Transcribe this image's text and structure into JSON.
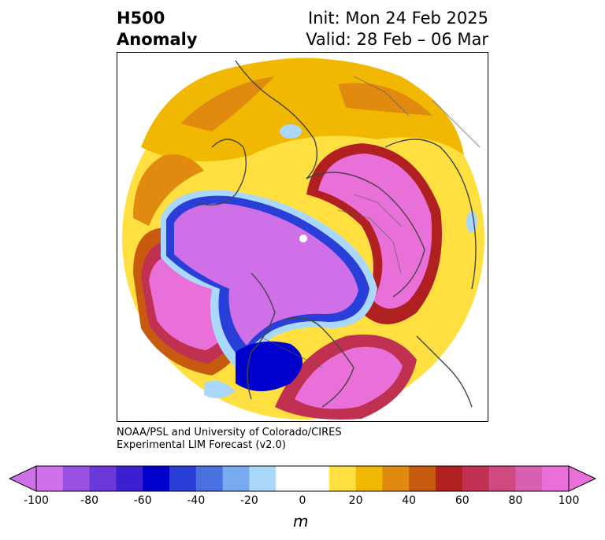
{
  "title": {
    "left_line1": "H500",
    "left_line2": "Anomaly",
    "right_line1": "Init: Mon 24 Feb 2025",
    "right_line2": "Valid: 28 Feb – 06 Mar"
  },
  "credits": {
    "line1": "NOAA/PSL and University of Colorado/CIRES",
    "line2": "Experimental LIM Forecast (v2.0)"
  },
  "colorbar": {
    "ticks": [
      "-100",
      "-80",
      "-60",
      "-40",
      "-20",
      "0",
      "20",
      "40",
      "60",
      "80",
      "100"
    ],
    "unit": "m",
    "colors": [
      "#d070e8",
      "#9a50e0",
      "#6a38d8",
      "#3a20d0",
      "#0000cc",
      "#2a3ed8",
      "#4a70e0",
      "#78aaf0",
      "#aad8fa",
      "#ffffff",
      "#ffffff",
      "#ffe040",
      "#f0b800",
      "#e08a10",
      "#c85a10",
      "#b02020",
      "#c03050",
      "#d04a80",
      "#d860b0",
      "#e870d8"
    ]
  },
  "map": {
    "projection": "north-polar-stereographic",
    "colors": {
      "strong_negative": "#d070e8",
      "negative_core": "#0000cc",
      "weak_negative": "#aad8fa",
      "weak_positive": "#ffe040",
      "moderate_positive": "#f0b800",
      "strong_positive": "#b02020",
      "very_strong_positive": "#e870d8",
      "coastline": "#444444"
    },
    "features": [
      "negative-anomaly-arctic",
      "positive-anomaly-north-pacific",
      "positive-anomaly-eastern-north-america",
      "positive-anomaly-europe-rim"
    ]
  }
}
